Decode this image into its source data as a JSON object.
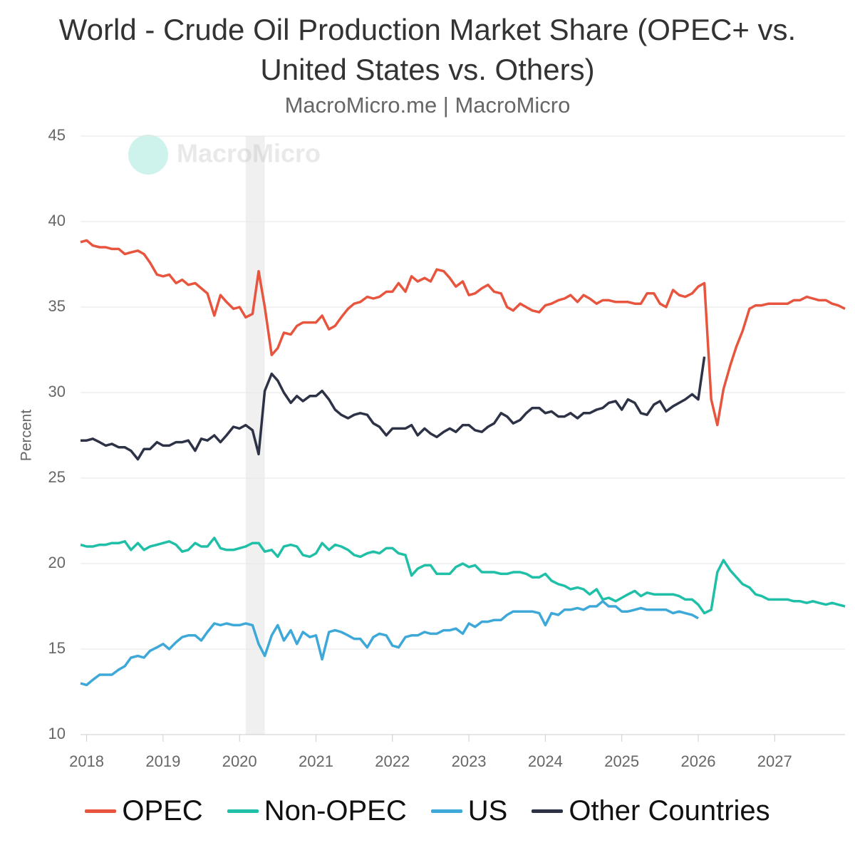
{
  "chart_data": {
    "type": "line",
    "title": "World - Crude Oil Production Market Share (OPEC+ vs. United States vs. Others)",
    "subtitle": "MacroMicro.me | MacroMicro",
    "watermark": "MacroMicro",
    "y_label": "Percent",
    "xlim": [
      2017.92,
      2027.92
    ],
    "xticks": [
      2018,
      2019,
      2020,
      2021,
      2022,
      2023,
      2024,
      2025,
      2026,
      2027
    ],
    "ylim": [
      10,
      45
    ],
    "yticks": [
      10,
      15,
      20,
      25,
      30,
      35,
      40,
      45
    ],
    "grid": true,
    "shaded_band": [
      2020.08,
      2020.33
    ],
    "x": [
      2017.92,
      2018,
      2018.08,
      2018.17,
      2018.25,
      2018.33,
      2018.42,
      2018.5,
      2018.58,
      2018.67,
      2018.75,
      2018.83,
      2018.92,
      2019,
      2019.08,
      2019.17,
      2019.25,
      2019.33,
      2019.42,
      2019.5,
      2019.58,
      2019.67,
      2019.75,
      2019.83,
      2019.92,
      2020,
      2020.08,
      2020.17,
      2020.25,
      2020.33,
      2020.42,
      2020.5,
      2020.58,
      2020.67,
      2020.75,
      2020.83,
      2020.92,
      2021,
      2021.08,
      2021.17,
      2021.25,
      2021.33,
      2021.42,
      2021.5,
      2021.58,
      2021.67,
      2021.75,
      2021.83,
      2021.92,
      2022,
      2022.08,
      2022.17,
      2022.25,
      2022.33,
      2022.42,
      2022.5,
      2022.58,
      2022.67,
      2022.75,
      2022.83,
      2022.92,
      2023,
      2023.08,
      2023.17,
      2023.25,
      2023.33,
      2023.42,
      2023.5,
      2023.58,
      2023.67,
      2023.75,
      2023.83,
      2023.92,
      2024,
      2024.08,
      2024.17,
      2024.25,
      2024.33,
      2024.42,
      2024.5,
      2024.58,
      2024.67,
      2024.75,
      2024.83,
      2024.92,
      2025,
      2025.08,
      2025.17,
      2025.25,
      2025.33,
      2025.42,
      2025.5,
      2025.58,
      2025.67,
      2025.75,
      2025.83,
      2025.92,
      2026,
      2026.08,
      2026.17,
      2026.25,
      2026.33,
      2026.42,
      2026.5,
      2026.58,
      2026.67,
      2026.75,
      2026.83,
      2026.92,
      2027,
      2027.08,
      2027.17,
      2027.25,
      2027.33,
      2027.42,
      2027.5,
      2027.58,
      2027.67,
      2027.75,
      2027.83,
      2027.92
    ],
    "series": [
      {
        "name": "OPEC",
        "color": "#e8553e",
        "values": [
          38.8,
          38.9,
          38.6,
          38.5,
          38.5,
          38.4,
          38.4,
          38.1,
          38.2,
          38.3,
          38.1,
          37.6,
          36.9,
          36.8,
          36.9,
          36.4,
          36.6,
          36.3,
          36.4,
          36.1,
          35.8,
          34.5,
          35.7,
          35.3,
          34.9,
          35.0,
          34.4,
          34.6,
          37.1,
          35.0,
          32.2,
          32.6,
          33.5,
          33.4,
          33.9,
          34.1,
          34.1,
          34.1,
          34.5,
          33.7,
          33.9,
          34.4,
          34.9,
          35.2,
          35.3,
          35.6,
          35.5,
          35.6,
          35.9,
          35.9,
          36.4,
          35.9,
          36.8,
          36.5,
          36.7,
          36.5,
          37.2,
          37.1,
          36.7,
          36.2,
          36.5,
          35.7,
          35.8,
          36.1,
          36.3,
          35.9,
          35.8,
          35.0,
          34.8,
          35.2,
          35.0,
          34.8,
          34.7,
          35.1,
          35.2,
          35.4,
          35.5,
          35.7,
          35.3,
          35.7,
          35.5,
          35.2,
          35.4,
          35.4,
          35.3,
          35.3,
          35.3,
          35.2,
          35.2,
          35.8,
          35.8,
          35.2,
          35.0,
          36.0,
          35.7,
          35.6,
          35.8,
          36.2,
          36.4,
          29.6,
          28.1,
          30.2,
          31.6,
          32.7,
          33.6,
          34.9,
          35.1,
          35.1,
          35.2,
          35.2,
          35.2,
          35.2,
          35.4,
          35.4,
          35.6,
          35.5,
          35.4,
          35.4,
          35.2,
          35.1,
          34.9
        ]
      },
      {
        "name": "Non-OPEC",
        "color": "#1fbfa8",
        "values": [
          21.1,
          21.0,
          21.0,
          21.1,
          21.1,
          21.2,
          21.2,
          21.3,
          20.8,
          21.2,
          20.8,
          21.0,
          21.1,
          21.2,
          21.3,
          21.1,
          20.7,
          20.8,
          21.2,
          21.0,
          21.0,
          21.5,
          20.9,
          20.8,
          20.8,
          20.9,
          21.0,
          21.2,
          21.2,
          20.7,
          20.8,
          20.4,
          21.0,
          21.1,
          21.0,
          20.5,
          20.4,
          20.6,
          21.2,
          20.8,
          21.1,
          21.0,
          20.8,
          20.5,
          20.4,
          20.6,
          20.7,
          20.6,
          20.9,
          20.9,
          20.6,
          20.5,
          19.3,
          19.7,
          19.9,
          19.9,
          19.4,
          19.4,
          19.4,
          19.8,
          20.0,
          19.8,
          19.9,
          19.5,
          19.5,
          19.5,
          19.4,
          19.4,
          19.5,
          19.5,
          19.4,
          19.2,
          19.2,
          19.4,
          19.0,
          18.8,
          18.7,
          18.5,
          18.6,
          18.5,
          18.2,
          18.5,
          17.9,
          18.0,
          17.8,
          18.0,
          18.2,
          18.4,
          18.1,
          18.3,
          18.2,
          18.2,
          18.2,
          18.2,
          18.1,
          17.9,
          17.9,
          17.6,
          17.1,
          17.3,
          19.5,
          20.2,
          19.6,
          19.2,
          18.8,
          18.6,
          18.2,
          18.1,
          17.9,
          17.9,
          17.9,
          17.9,
          17.8,
          17.8,
          17.7,
          17.8,
          17.7,
          17.6,
          17.7,
          17.6,
          17.5
        ]
      },
      {
        "name": "US",
        "color": "#3ea8d8",
        "values": [
          13.0,
          12.9,
          13.2,
          13.5,
          13.5,
          13.5,
          13.8,
          14.0,
          14.5,
          14.6,
          14.5,
          14.9,
          15.1,
          15.3,
          15.0,
          15.4,
          15.7,
          15.8,
          15.8,
          15.5,
          16.0,
          16.5,
          16.4,
          16.5,
          16.4,
          16.4,
          16.5,
          16.4,
          15.3,
          14.6,
          15.8,
          16.4,
          15.5,
          16.1,
          15.3,
          16.0,
          15.7,
          15.8,
          14.4,
          16.0,
          16.1,
          16.0,
          15.8,
          15.6,
          15.6,
          15.1,
          15.7,
          15.9,
          15.8,
          15.2,
          15.1,
          15.7,
          15.8,
          15.8,
          16.0,
          15.9,
          15.9,
          16.1,
          16.1,
          16.2,
          15.9,
          16.5,
          16.3,
          16.6,
          16.6,
          16.7,
          16.7,
          17.0,
          17.2,
          17.2,
          17.2,
          17.2,
          17.1,
          16.4,
          17.1,
          17.0,
          17.3,
          17.3,
          17.4,
          17.3,
          17.5,
          17.5,
          17.8,
          17.5,
          17.5,
          17.2,
          17.2,
          17.3,
          17.4,
          17.3,
          17.3,
          17.3,
          17.3,
          17.1,
          17.2,
          17.1,
          17.0,
          16.8,
          null,
          null,
          null,
          null,
          null,
          null,
          null,
          null,
          null,
          null,
          null,
          null,
          null,
          null,
          null,
          null,
          null,
          null,
          null,
          null,
          null,
          null,
          null
        ]
      },
      {
        "name": "Other Countries",
        "color": "#2d3246",
        "values": [
          27.2,
          27.2,
          27.3,
          27.1,
          26.9,
          27.0,
          26.8,
          26.8,
          26.6,
          26.1,
          26.7,
          26.7,
          27.1,
          26.9,
          26.9,
          27.1,
          27.1,
          27.2,
          26.6,
          27.3,
          27.2,
          27.5,
          27.1,
          27.5,
          28.0,
          27.9,
          28.1,
          27.8,
          26.4,
          30.1,
          31.1,
          30.7,
          30.0,
          29.4,
          29.8,
          29.5,
          29.8,
          29.8,
          30.1,
          29.6,
          29.0,
          28.7,
          28.5,
          28.7,
          28.8,
          28.7,
          28.2,
          28.0,
          27.5,
          27.9,
          27.9,
          27.9,
          28.1,
          27.5,
          27.9,
          27.6,
          27.4,
          27.7,
          27.9,
          27.7,
          28.1,
          28.1,
          27.8,
          27.7,
          28.0,
          28.2,
          28.8,
          28.6,
          28.2,
          28.4,
          28.8,
          29.1,
          29.1,
          28.8,
          28.9,
          28.6,
          28.6,
          28.8,
          28.5,
          28.8,
          28.8,
          29.0,
          29.1,
          29.4,
          29.5,
          29.0,
          29.6,
          29.4,
          28.8,
          28.7,
          29.3,
          29.5,
          28.9,
          29.2,
          29.4,
          29.6,
          29.9,
          29.6,
          32.1,
          null,
          null,
          null,
          null,
          null,
          null,
          null,
          null,
          null,
          null,
          null,
          null,
          null,
          null,
          null,
          null,
          null,
          null,
          null,
          null,
          null,
          null
        ]
      }
    ]
  }
}
